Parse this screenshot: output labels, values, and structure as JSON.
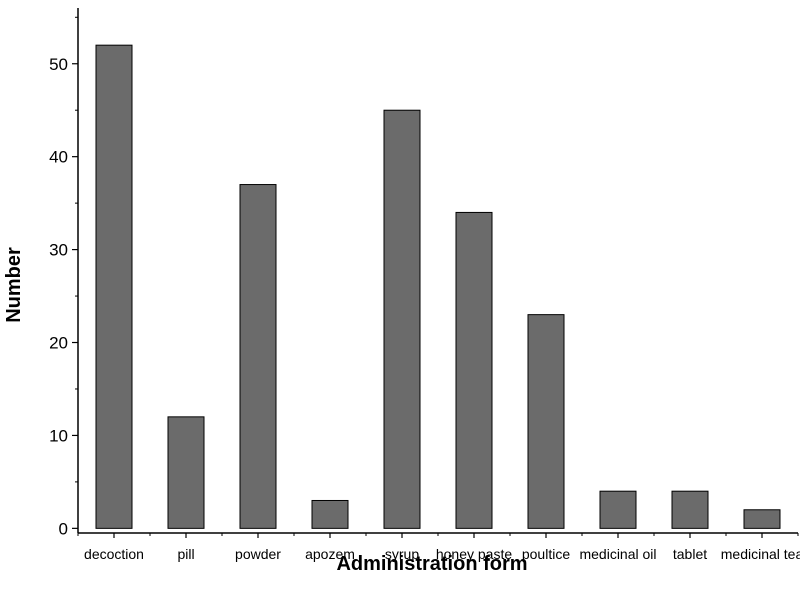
{
  "chart_data": {
    "type": "bar",
    "title": "",
    "xlabel": "Administration form",
    "ylabel": "Number",
    "categories": [
      "decoction",
      "pill",
      "powder",
      "apozem",
      "syrup",
      "honey paste",
      "poultice",
      "medicinal oil",
      "tablet",
      "medicinal tea"
    ],
    "values": [
      52,
      12,
      37,
      3,
      45,
      34,
      23,
      4,
      4,
      2
    ],
    "yticks": [
      0,
      10,
      20,
      30,
      40,
      50
    ],
    "ylim": [
      -0.5,
      56
    ],
    "grid": false,
    "bar_color": "#6b6b6b",
    "edge_color": "#000000"
  }
}
